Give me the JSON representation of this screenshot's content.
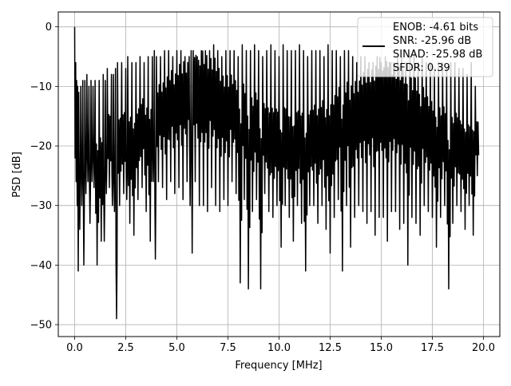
{
  "chart_data": {
    "type": "line",
    "title": "",
    "xlabel": "Frequency [MHz]",
    "ylabel": "PSD [dB]",
    "xlim": [
      -0.8,
      20.8
    ],
    "ylim": [
      -52,
      2.5
    ],
    "xticks": [
      0.0,
      2.5,
      5.0,
      7.5,
      10.0,
      12.5,
      15.0,
      17.5,
      20.0
    ],
    "xtick_labels": [
      "0.0",
      "2.5",
      "5.0",
      "7.5",
      "10.0",
      "12.5",
      "15.0",
      "17.5",
      "20.0"
    ],
    "yticks": [
      0,
      -10,
      -20,
      -30,
      -40,
      -50
    ],
    "ytick_labels": [
      "0",
      "−10",
      "−20",
      "−30",
      "−40",
      "−50"
    ],
    "grid": true,
    "legend_position": "top-right",
    "legend": [
      "ENOB: -4.61 bits",
      "SNR: -25.96 dB",
      "SINAD: -25.98 dB",
      "SFDR: 0.39"
    ],
    "series": [
      {
        "color": "#000000",
        "x": [
          0.0,
          0.05,
          0.1,
          0.15,
          0.2,
          0.3,
          0.4,
          0.5,
          0.6,
          0.7,
          0.8,
          0.9,
          1.0,
          1.2,
          1.4,
          1.5,
          1.6,
          1.8,
          1.9,
          2.0,
          2.1,
          2.3,
          2.5,
          2.6,
          2.8,
          3.0,
          3.2,
          3.4,
          3.6,
          3.8,
          3.9,
          4.0,
          4.2,
          4.4,
          4.6,
          4.8,
          5.0,
          5.2,
          5.4,
          5.6,
          5.7,
          5.8,
          6.0,
          6.2,
          6.4,
          6.6,
          6.8,
          7.0,
          7.2,
          7.4,
          7.6,
          7.8,
          8.0,
          8.2,
          8.4,
          8.6,
          8.8,
          9.0,
          9.2,
          9.4,
          9.6,
          9.8,
          10.0,
          10.2,
          10.4,
          10.6,
          10.8,
          11.0,
          11.2,
          11.4,
          11.6,
          11.8,
          12.0,
          12.2,
          12.4,
          12.6,
          12.8,
          13.0,
          13.2,
          13.4,
          13.6,
          13.8,
          14.0,
          14.2,
          14.4,
          14.6,
          14.8,
          15.0,
          15.2,
          15.4,
          15.6,
          15.8,
          16.0,
          16.2,
          16.4,
          16.6,
          16.8,
          17.0,
          17.2,
          17.4,
          17.6,
          17.8,
          18.0,
          18.2,
          18.4,
          18.6,
          18.8,
          19.0,
          19.2,
          19.4,
          19.6,
          19.8,
          20.0
        ],
        "max": [
          0,
          -6,
          -9,
          -10,
          -11,
          -10,
          -9,
          -9,
          -8,
          -10,
          -9,
          -10,
          -9,
          -9,
          -8,
          -9,
          -7,
          -8,
          -8,
          -7,
          -6,
          -6,
          -7,
          -5,
          -6,
          -6,
          -5,
          -6,
          -5,
          -5,
          -4,
          -5,
          -5,
          -4,
          -4,
          -5,
          -4,
          -4,
          -5,
          -5,
          -4,
          -4,
          -5,
          -4,
          -4,
          -4,
          -3,
          -4,
          -5,
          -4,
          -4,
          -4,
          -5,
          -3,
          -4,
          -4,
          -3,
          -4,
          -5,
          -4,
          -3,
          -4,
          -5,
          -3,
          -4,
          -4,
          -4,
          -3,
          -4,
          -5,
          -4,
          -4,
          -4,
          -5,
          -3,
          -4,
          -4,
          -5,
          -4,
          -4,
          -5,
          -6,
          -5,
          -5,
          -6,
          -6,
          -5,
          -6,
          -5,
          -6,
          -6,
          -5,
          -5,
          -6,
          -5,
          -4,
          -6,
          -5,
          -6,
          -6,
          -7,
          -6,
          -6,
          -7,
          -6,
          -6,
          -7,
          -7,
          -8,
          -6,
          -10
        ],
        "min": [
          -22,
          -26,
          -30,
          -41,
          -34,
          -30,
          -40,
          -28,
          -26,
          -33,
          -26,
          -27,
          -40,
          -36,
          -36,
          -28,
          -27,
          -30,
          -31,
          -49,
          -30,
          -28,
          -29,
          -33,
          -35,
          -29,
          -27,
          -31,
          -36,
          -26,
          -39,
          -26,
          -27,
          -29,
          -26,
          -28,
          -27,
          -29,
          -26,
          -30,
          -38,
          -26,
          -30,
          -30,
          -31,
          -27,
          -30,
          -31,
          -29,
          -30,
          -26,
          -28,
          -43,
          -29,
          -44,
          -31,
          -29,
          -44,
          -28,
          -31,
          -32,
          -30,
          -37,
          -30,
          -32,
          -36,
          -30,
          -33,
          -41,
          -30,
          -30,
          -33,
          -30,
          -34,
          -38,
          -32,
          -29,
          -41,
          -30,
          -37,
          -32,
          -30,
          -31,
          -33,
          -31,
          -35,
          -32,
          -32,
          -36,
          -31,
          -31,
          -34,
          -33,
          -40,
          -32,
          -33,
          -35,
          -30,
          -31,
          -32,
          -37,
          -32,
          -30,
          -44,
          -33,
          -30,
          -31,
          -34,
          -30,
          -35,
          -25
        ]
      }
    ]
  }
}
